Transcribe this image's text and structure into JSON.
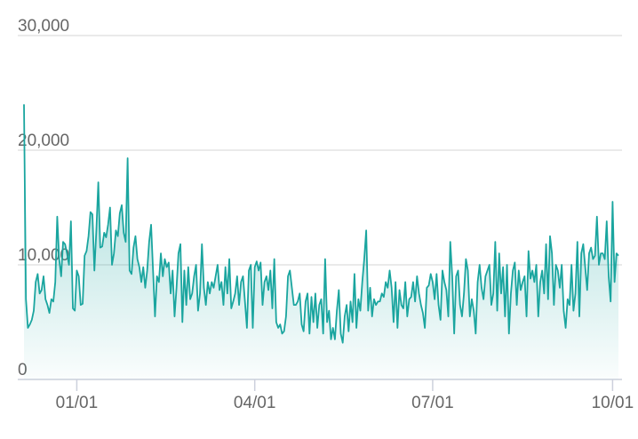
{
  "chart_data": {
    "type": "area",
    "categories": [
      null,
      null,
      null,
      null,
      null,
      null,
      null,
      null,
      null,
      null,
      null,
      null,
      null,
      null,
      null,
      null,
      null,
      null,
      null,
      null,
      null,
      null,
      null,
      null,
      null,
      null,
      null,
      "01/01",
      null,
      null,
      null,
      null,
      null,
      null,
      null,
      null,
      null,
      null,
      null,
      null,
      null,
      null,
      null,
      null,
      null,
      null,
      null,
      null,
      null,
      null,
      null,
      null,
      null,
      null,
      null,
      null,
      null,
      null,
      null,
      null,
      null,
      null,
      null,
      null,
      null,
      null,
      null,
      null,
      null,
      null,
      null,
      null,
      null,
      null,
      null,
      null,
      null,
      null,
      null,
      null,
      null,
      null,
      null,
      null,
      null,
      null,
      null,
      null,
      null,
      null,
      null,
      null,
      null,
      null,
      null,
      null,
      null,
      null,
      null,
      null,
      null,
      null,
      null,
      null,
      null,
      null,
      null,
      null,
      null,
      null,
      null,
      null,
      null,
      null,
      null,
      null,
      null,
      null,
      "04/01",
      null,
      null,
      null,
      null,
      null,
      null,
      null,
      null,
      null,
      null,
      null,
      null,
      null,
      null,
      null,
      null,
      null,
      null,
      null,
      null,
      null,
      null,
      null,
      null,
      null,
      null,
      null,
      null,
      null,
      null,
      null,
      null,
      null,
      null,
      null,
      null,
      null,
      null,
      null,
      null,
      null,
      null,
      null,
      null,
      null,
      null,
      null,
      null,
      null,
      null,
      null,
      null,
      null,
      null,
      null,
      null,
      null,
      null,
      null,
      null,
      null,
      null,
      null,
      null,
      null,
      null,
      null,
      null,
      null,
      null,
      null,
      null,
      null,
      null,
      null,
      null,
      null,
      null,
      null,
      null,
      null,
      null,
      null,
      null,
      null,
      null,
      null,
      null,
      null,
      null,
      "07/01",
      null,
      null,
      null,
      null,
      null,
      null,
      null,
      null,
      null,
      null,
      null,
      null,
      null,
      null,
      null,
      null,
      null,
      null,
      null,
      null,
      null,
      null,
      null,
      null,
      null,
      null,
      null,
      null,
      null,
      null,
      null,
      null,
      null,
      null,
      null,
      null,
      null,
      null,
      null,
      null,
      null,
      null,
      null,
      null,
      null,
      null,
      null,
      null,
      null,
      null,
      null,
      null,
      null,
      null,
      null,
      null,
      null,
      null,
      null,
      null,
      null,
      null,
      null,
      null,
      null,
      null,
      null,
      null,
      null,
      null,
      null,
      null,
      null,
      null,
      null,
      null,
      null,
      null,
      null,
      null,
      null,
      null,
      null,
      null,
      null,
      null,
      null,
      null,
      null,
      null,
      null,
      "10/01",
      null,
      null,
      null
    ],
    "values": [
      24000,
      7000,
      4500,
      4800,
      5200,
      6000,
      8500,
      9200,
      7500,
      7800,
      9000,
      7000,
      6500,
      5800,
      7000,
      6800,
      8500,
      14200,
      10500,
      9000,
      12000,
      11800,
      11000,
      10000,
      13800,
      6200,
      6000,
      9500,
      9000,
      6500,
      6600,
      10800,
      11200,
      12500,
      14600,
      14400,
      9500,
      13000,
      17200,
      11500,
      11600,
      12800,
      12400,
      13500,
      15000,
      10000,
      11000,
      13000,
      12500,
      14500,
      15200,
      12800,
      12000,
      19300,
      9500,
      9200,
      11500,
      12500,
      10500,
      9800,
      8500,
      9800,
      8000,
      9500,
      12000,
      13500,
      9500,
      5500,
      9000,
      8500,
      11000,
      9000,
      10500,
      9800,
      10200,
      7500,
      9500,
      5500,
      8000,
      11000,
      11800,
      5000,
      9500,
      6500,
      9800,
      7000,
      7500,
      9000,
      10000,
      6000,
      7500,
      11800,
      8000,
      6500,
      8500,
      7500,
      8500,
      8000,
      9000,
      10000,
      7800,
      8500,
      6500,
      9800,
      7500,
      10500,
      6200,
      6800,
      7500,
      9000,
      6500,
      8500,
      9000,
      6800,
      4500,
      9500,
      10000,
      4500,
      9800,
      10300,
      9500,
      10200,
      6500,
      8500,
      9000,
      7800,
      9500,
      6200,
      10500,
      5000,
      4500,
      4800,
      4000,
      4200,
      5500,
      9000,
      9500,
      8000,
      6500,
      6500,
      6800,
      7500,
      4800,
      4200,
      6800,
      7500,
      4000,
      7200,
      5000,
      7500,
      4500,
      6500,
      7000,
      4000,
      10500,
      5000,
      6000,
      3500,
      4500,
      3500,
      6000,
      7800,
      4000,
      3200,
      5500,
      6500,
      4200,
      6800,
      5000,
      9200,
      4500,
      7000,
      6000,
      8500,
      10500,
      13000,
      6000,
      8000,
      5500,
      7000,
      6500,
      6800,
      6800,
      7500,
      7200,
      8500,
      8000,
      9500,
      8000,
      5000,
      8500,
      4500,
      7800,
      6500,
      6200,
      8500,
      5500,
      7000,
      7200,
      8500,
      6800,
      9000,
      7500,
      6500,
      5800,
      4500,
      8000,
      8200,
      9200,
      8500,
      7000,
      9200,
      6500,
      5200,
      9500,
      8500,
      7800,
      5500,
      12000,
      9000,
      4000,
      9000,
      9500,
      6500,
      5500,
      7500,
      10500,
      9500,
      5500,
      7000,
      6000,
      4000,
      8500,
      10000,
      8000,
      7000,
      9000,
      9500,
      10000,
      6500,
      7500,
      12000,
      6000,
      11000,
      7500,
      9800,
      5500,
      10000,
      4000,
      7500,
      9500,
      10200,
      6500,
      9500,
      7800,
      8500,
      9000,
      5500,
      11200,
      8800,
      9500,
      8500,
      10000,
      5500,
      8500,
      9500,
      7500,
      11800,
      7000,
      12500,
      11000,
      6500,
      10000,
      9500,
      8000,
      10000,
      6000,
      4500,
      7000,
      6500,
      10000,
      6000,
      7500,
      12000,
      5500,
      11000,
      11800,
      9800,
      7800,
      11000,
      11500,
      10500,
      10800,
      14200,
      10000,
      11000,
      11000,
      10500,
      13800,
      9000,
      6800,
      15500,
      8500,
      11000,
      10800
    ],
    "color": "#1aa59f",
    "ylim": [
      0,
      30000
    ],
    "yticks": [
      0,
      {
        "value": 10000,
        "label": "10,000"
      },
      {
        "value": 20000,
        "label": "20,000"
      },
      {
        "value": 30000,
        "label": "30,000"
      }
    ],
    "grid": true
  }
}
